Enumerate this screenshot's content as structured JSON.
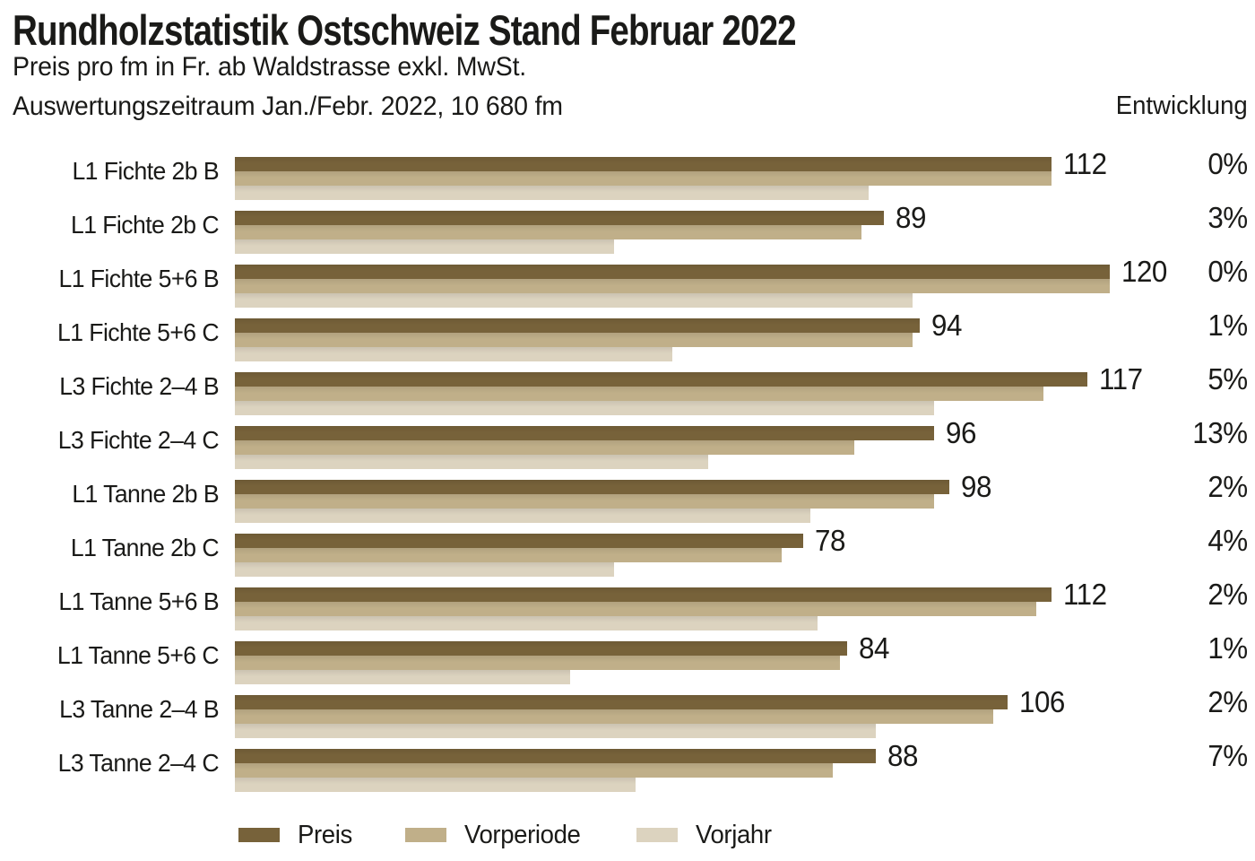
{
  "title": "Rundholzstatistik Ostschweiz Stand Februar 2022",
  "subtitle_line1": "Preis pro fm in Fr. ab Waldstrasse exkl. MwSt.",
  "subtitle_line2": "Auswertungszeitraum Jan./Febr. 2022, 10 680 fm",
  "entwicklung_header": "Entwicklung",
  "colors": {
    "preis": "#77623a",
    "vorperiode": "#c0af89",
    "vorjahr": "#dcd3bf",
    "text": "#1a1a18",
    "background": "#ffffff"
  },
  "chart_data": {
    "type": "bar",
    "orientation": "horizontal",
    "title": "Rundholzstatistik Ostschweiz Stand Februar 2022",
    "value_unit": "Fr. pro fm",
    "xlim": [
      0,
      139
    ],
    "grid": false,
    "legend_position": "bottom",
    "categories": [
      "L1 Fichte 2b B",
      "L1 Fichte 2b C",
      "L1 Fichte 5+6 B",
      "L1 Fichte 5+6 C",
      "L3 Fichte 2–4 B",
      "L3 Fichte 2–4 C",
      "L1 Tanne 2b B",
      "L1 Tanne 2b C",
      "L1 Tanne 5+6 B",
      "L1 Tanne 5+6 C",
      "L3 Tanne 2–4 B",
      "L3 Tanne 2–4 C"
    ],
    "series": [
      {
        "name": "Preis",
        "color": "#77623a",
        "values": [
          112,
          89,
          120,
          94,
          117,
          96,
          98,
          78,
          112,
          84,
          106,
          88
        ]
      },
      {
        "name": "Vorperiode",
        "color": "#c0af89",
        "values": [
          112,
          86,
          120,
          93,
          111,
          85,
          96,
          75,
          110,
          83,
          104,
          82
        ]
      },
      {
        "name": "Vorjahr",
        "color": "#dcd3bf",
        "values": [
          87,
          52,
          93,
          60,
          96,
          65,
          79,
          52,
          80,
          46,
          88,
          55
        ]
      }
    ],
    "bar_value_labels": [
      "112",
      "89",
      "120",
      "94",
      "117",
      "96",
      "98",
      "78",
      "112",
      "84",
      "106",
      "88"
    ],
    "entwicklung_values": [
      "0%",
      "3%",
      "0%",
      "1%",
      "5%",
      "13%",
      "2%",
      "4%",
      "2%",
      "1%",
      "2%",
      "7%"
    ]
  }
}
